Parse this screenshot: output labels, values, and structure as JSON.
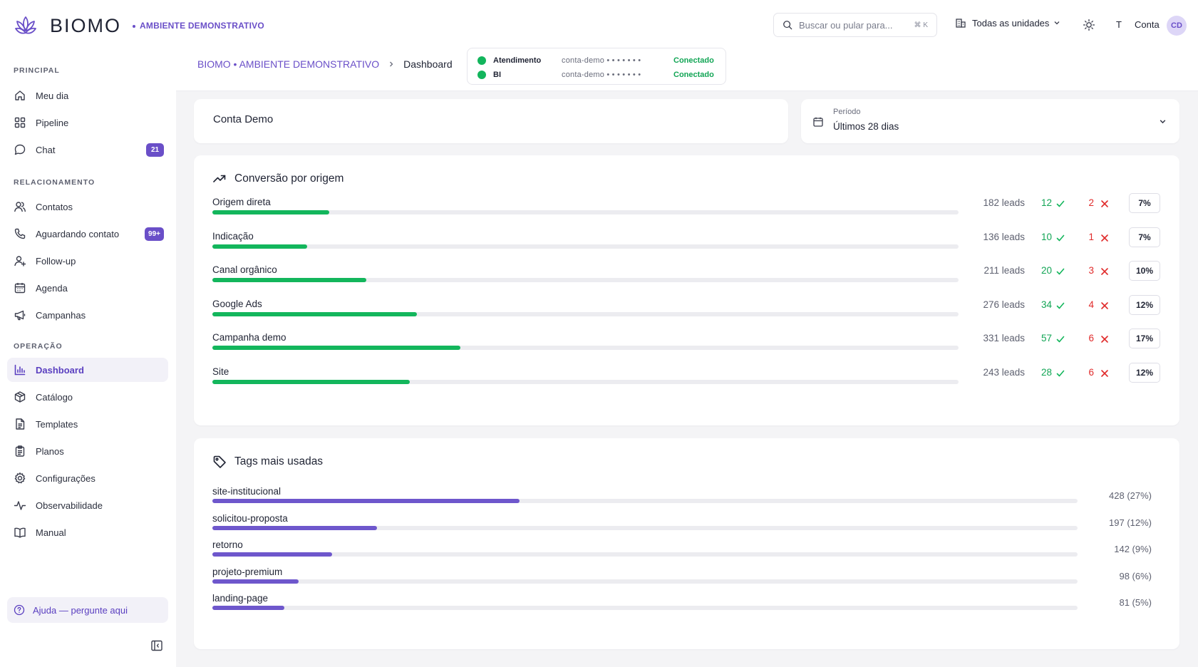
{
  "brand": {
    "name": "BIOMO",
    "env": "AMBIENTE DEMONSTRATIVO"
  },
  "header": {
    "search_placeholder": "Buscar ou pular para...",
    "search_shortcut": "⌘ K",
    "units_label": "Todas as unidades",
    "t_letter": "T",
    "account_label": "Conta",
    "avatar_initials": "CD"
  },
  "sidebar": {
    "sections": [
      {
        "title": "PRINCIPAL"
      },
      {
        "title": "RELACIONAMENTO"
      },
      {
        "title": "OPERAÇÃO"
      }
    ],
    "items": [
      {
        "label": "Meu dia",
        "icon": "home-icon"
      },
      {
        "label": "Pipeline",
        "icon": "grid-icon"
      },
      {
        "label": "Chat",
        "icon": "chat-icon",
        "badge": "21"
      },
      {
        "label": "Contatos",
        "icon": "users-icon"
      },
      {
        "label": "Aguardando contato",
        "icon": "phone-icon",
        "badge": "99+"
      },
      {
        "label": "Follow-up",
        "icon": "user-plus-icon"
      },
      {
        "label": "Agenda",
        "icon": "calendar-icon"
      },
      {
        "label": "Campanhas",
        "icon": "megaphone-icon"
      },
      {
        "label": "Dashboard",
        "icon": "bar-chart-icon",
        "active": true
      },
      {
        "label": "Catálogo",
        "icon": "box-icon"
      },
      {
        "label": "Templates",
        "icon": "file-icon"
      },
      {
        "label": "Planos",
        "icon": "clipboard-icon"
      },
      {
        "label": "Configurações",
        "icon": "gear-icon"
      },
      {
        "label": "Observabilidade",
        "icon": "activity-icon"
      },
      {
        "label": "Manual",
        "icon": "book-icon"
      }
    ],
    "help_label": "Ajuda — pergunte aqui"
  },
  "breadcrumb": {
    "root": "BIOMO • AMBIENTE DEMONSTRATIVO",
    "current": "Dashboard"
  },
  "connections": [
    {
      "service": "Atendimento",
      "account": "conta-demo • • • • • • •",
      "status": "Conectado"
    },
    {
      "service": "BI",
      "account": "conta-demo • • • • • • •",
      "status": "Conectado"
    }
  ],
  "account_card": {
    "name": "Conta Demo"
  },
  "period": {
    "label": "Período",
    "value": "Últimos 28 dias"
  },
  "conversion": {
    "title": "Conversão por origem",
    "rows": [
      {
        "label": "Origem direta",
        "leads": "182 leads",
        "won": "12",
        "lost": "2",
        "rate": "7%",
        "fill": 0.157
      },
      {
        "label": "Indicação",
        "leads": "136 leads",
        "won": "10",
        "lost": "1",
        "rate": "7%",
        "fill": 0.127
      },
      {
        "label": "Canal orgânico",
        "leads": "211 leads",
        "won": "20",
        "lost": "3",
        "rate": "10%",
        "fill": 0.206
      },
      {
        "label": "Google Ads",
        "leads": "276 leads",
        "won": "34",
        "lost": "4",
        "rate": "12%",
        "fill": 0.274
      },
      {
        "label": "Campanha demo",
        "leads": "331 leads",
        "won": "57",
        "lost": "6",
        "rate": "17%",
        "fill": 0.332
      },
      {
        "label": "Site",
        "leads": "243 leads",
        "won": "28",
        "lost": "6",
        "rate": "12%",
        "fill": 0.265
      }
    ]
  },
  "tags": {
    "title": "Tags mais usadas",
    "rows": [
      {
        "label": "site-institucional",
        "count": "428 (27%)",
        "fill": 0.355
      },
      {
        "label": "solicitou-proposta",
        "count": "197 (12%)",
        "fill": 0.19
      },
      {
        "label": "retorno",
        "count": "142 (9%)",
        "fill": 0.138
      },
      {
        "label": "projeto-premium",
        "count": "98 (6%)",
        "fill": 0.1
      },
      {
        "label": "landing-page",
        "count": "81 (5%)",
        "fill": 0.083
      }
    ]
  },
  "colors": {
    "accent": "#6a4fc8",
    "success": "#13b65c",
    "danger": "#e02a2a"
  }
}
